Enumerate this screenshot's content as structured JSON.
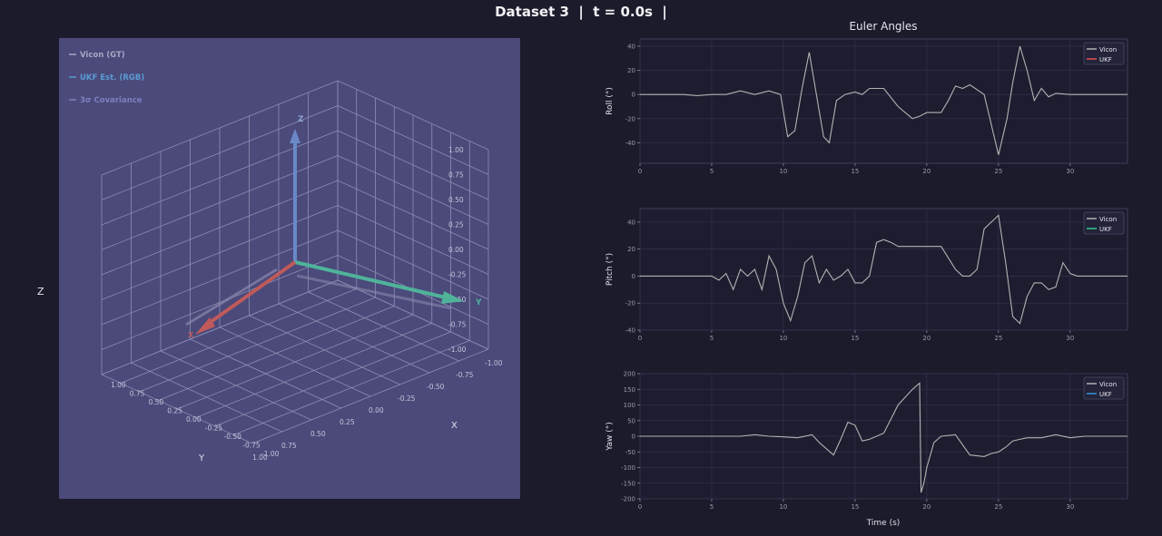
{
  "title": "Dataset 3  |  t = 0.0s  |",
  "scene3d": {
    "legend": [
      "Vicon (GT)",
      "UKF Est. (RGB)",
      "3σ Covariance"
    ],
    "axis_labels": {
      "x": "X",
      "y": "Y",
      "z": "Z"
    },
    "ticks": [
      "-1.00",
      "-0.75",
      "-0.50",
      "-0.25",
      "0.00",
      "0.25",
      "0.50",
      "0.75",
      "1.00"
    ],
    "frame_labels": {
      "x": "X",
      "y": "Y",
      "z": "Z"
    },
    "colors": {
      "x_axis": "#c05a5a",
      "y_axis": "#4fb39a",
      "z_axis": "#6a88c8",
      "bg": "#4b4a7a"
    }
  },
  "plots": {
    "super_title": "Euler Angles",
    "xlabel": "Time (s)",
    "legend_labels": [
      "Vicon",
      "UKF"
    ],
    "colors": {
      "vicon": "#b3b3b3",
      "ukf_roll": "#e8504f",
      "ukf_pitch": "#2ecc8f",
      "ukf_yaw": "#3498db"
    }
  },
  "chart_data": [
    {
      "type": "line",
      "ylabel": "Roll (°)",
      "xlim": [
        0,
        34
      ],
      "ylim": [
        -57,
        46
      ],
      "xticks": [
        0,
        5,
        10,
        15,
        20,
        25,
        30
      ],
      "yticks": [
        -40,
        -20,
        0,
        20,
        40
      ],
      "legend": [
        "Vicon",
        "UKF"
      ],
      "series": [
        {
          "name": "Vicon",
          "x": [
            0,
            3,
            4,
            5,
            6,
            7,
            8,
            9,
            9.8,
            10.3,
            10.8,
            11.3,
            11.8,
            12.3,
            12.8,
            13.2,
            13.7,
            14.3,
            15,
            15.5,
            16,
            17,
            18,
            19,
            19.5,
            20,
            21,
            21.5,
            22,
            22.5,
            23,
            24,
            25,
            25.6,
            26,
            26.5,
            27,
            27.5,
            28,
            28.5,
            29,
            30,
            31,
            32,
            33,
            34
          ],
          "y": [
            0,
            0,
            -1,
            0,
            0,
            3,
            0,
            3,
            0,
            -35,
            -30,
            5,
            35,
            0,
            -35,
            -40,
            -5,
            0,
            2,
            0,
            5,
            5,
            -10,
            -20,
            -18,
            -15,
            -15,
            -5,
            7,
            5,
            8,
            0,
            -50,
            -20,
            10,
            40,
            20,
            -5,
            5,
            -2,
            1,
            0,
            0,
            0,
            0,
            0
          ]
        },
        {
          "name": "UKF",
          "x": [],
          "y": []
        }
      ]
    },
    {
      "type": "line",
      "ylabel": "Pitch (°)",
      "xlim": [
        0,
        34
      ],
      "ylim": [
        -40,
        50
      ],
      "xticks": [
        0,
        5,
        10,
        15,
        20,
        25,
        30
      ],
      "yticks": [
        -40,
        -20,
        0,
        20,
        40
      ],
      "legend": [
        "Vicon",
        "UKF"
      ],
      "series": [
        {
          "name": "Vicon",
          "x": [
            0,
            3,
            4,
            5,
            5.5,
            6,
            6.5,
            7,
            7.5,
            8,
            8.5,
            9,
            9.5,
            10,
            10.5,
            11,
            11.5,
            12,
            12.5,
            13,
            13.5,
            14,
            14.5,
            15,
            15.5,
            16,
            16.5,
            17,
            17.5,
            18,
            19,
            20,
            21,
            22,
            22.5,
            23,
            23.5,
            24,
            24.5,
            25,
            25.5,
            26,
            26.5,
            27,
            27.5,
            28,
            28.5,
            29,
            29.5,
            30,
            30.5,
            31,
            32,
            33,
            34
          ],
          "y": [
            0,
            0,
            0,
            0,
            -3,
            2,
            -10,
            5,
            0,
            5,
            -10,
            15,
            5,
            -20,
            -33,
            -15,
            10,
            15,
            -5,
            5,
            -3,
            0,
            5,
            -5,
            -5,
            0,
            25,
            27,
            25,
            22,
            22,
            22,
            22,
            5,
            0,
            0,
            5,
            35,
            40,
            45,
            10,
            -30,
            -35,
            -15,
            -5,
            -5,
            -10,
            -8,
            10,
            2,
            0,
            0,
            0,
            0,
            0
          ]
        },
        {
          "name": "UKF",
          "x": [],
          "y": []
        }
      ]
    },
    {
      "type": "line",
      "ylabel": "Yaw (°)",
      "xlim": [
        0,
        34
      ],
      "ylim": [
        -200,
        200
      ],
      "xticks": [
        0,
        5,
        10,
        15,
        20,
        25,
        30
      ],
      "yticks": [
        -200,
        -150,
        -100,
        -50,
        0,
        50,
        100,
        150,
        200
      ],
      "legend": [
        "Vicon",
        "UKF"
      ],
      "series": [
        {
          "name": "Vicon",
          "x": [
            0,
            5,
            7,
            8,
            9,
            10,
            11,
            12,
            12.5,
            13,
            13.5,
            14,
            14.5,
            15,
            15.5,
            16,
            17,
            18,
            19,
            19.5,
            19.6,
            19.8,
            20,
            20.5,
            21,
            22,
            23,
            24,
            24.5,
            25,
            25.5,
            26,
            26.5,
            27,
            28,
            29,
            30,
            31,
            32,
            33,
            34
          ],
          "y": [
            0,
            0,
            0,
            5,
            0,
            -2,
            -5,
            5,
            -20,
            -40,
            -60,
            -10,
            45,
            35,
            -15,
            -10,
            10,
            100,
            150,
            170,
            -180,
            -150,
            -100,
            -20,
            0,
            5,
            -60,
            -65,
            -55,
            -50,
            -35,
            -15,
            -10,
            -5,
            -5,
            5,
            -5,
            0,
            0,
            0,
            0
          ]
        },
        {
          "name": "UKF",
          "x": [],
          "y": []
        }
      ]
    }
  ]
}
